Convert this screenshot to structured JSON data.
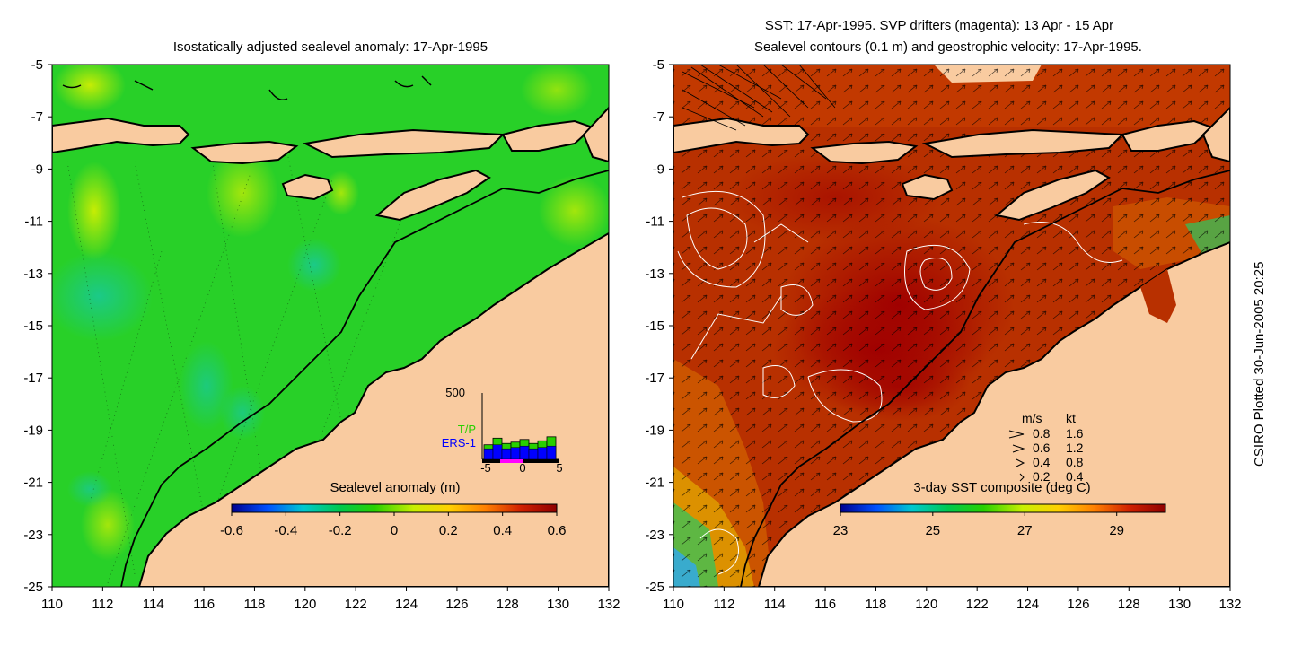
{
  "left_panel": {
    "title": "Isostatically adjusted sealevel anomaly: 17-Apr-1995",
    "colorbar": {
      "title": "Sealevel anomaly (m)",
      "ticks": [
        "-0.6",
        "-0.4",
        "-0.2",
        "0",
        "0.2",
        "0.4",
        "0.6"
      ],
      "stops": [
        "#00008f",
        "#0050ff",
        "#00c8d0",
        "#00c850",
        "#28d000",
        "#c8f000",
        "#ffd000",
        "#ff8000",
        "#d02000",
        "#8f0000"
      ]
    },
    "inset": {
      "ymax_label": "500",
      "legend_tp": "T/P",
      "legend_ers": "ERS-1",
      "x_ticks": [
        "-5",
        "0",
        "5"
      ],
      "tp_values": [
        110,
        160,
        120,
        130,
        150,
        120,
        140,
        170
      ],
      "ers_values": [
        80,
        110,
        80,
        90,
        100,
        80,
        90,
        100
      ],
      "tp_color": "#28d000",
      "ers_color": "#0000ff"
    }
  },
  "right_panel": {
    "title_line1": "SST: 17-Apr-1995. SVP drifters (magenta): 13 Apr - 15 Apr",
    "title_line2": "Sealevel contours (0.1 m) and geostrophic velocity: 17-Apr-1995.",
    "colorbar": {
      "title": "3-day SST composite (deg C)",
      "ticks": [
        "23",
        "25",
        "27",
        "29"
      ],
      "stops": [
        "#00008f",
        "#0050ff",
        "#00c8d0",
        "#00c850",
        "#28d000",
        "#c8f000",
        "#ffd000",
        "#ff8000",
        "#d02000",
        "#8f0000"
      ]
    },
    "velocity_legend": {
      "header_ms": "m/s",
      "header_kt": "kt",
      "rows": [
        {
          "ms": "0.8",
          "kt": "1.6"
        },
        {
          "ms": "0.6",
          "kt": "1.2"
        },
        {
          "ms": "0.4",
          "kt": "0.8"
        },
        {
          "ms": "0.2",
          "kt": "0.4"
        }
      ]
    }
  },
  "axes": {
    "lon_ticks": [
      "110",
      "112",
      "114",
      "116",
      "118",
      "120",
      "122",
      "124",
      "126",
      "128",
      "130",
      "132"
    ],
    "lat_ticks": [
      "-5",
      "-7",
      "-9",
      "-11",
      "-13",
      "-15",
      "-17",
      "-19",
      "-21",
      "-23",
      "-25"
    ],
    "lon_range": [
      110,
      132
    ],
    "lat_range": [
      -25,
      -5
    ]
  },
  "credit": "CSIRO Plotted 30-Jun-2005 20:25",
  "colors": {
    "land": "#f9cba0",
    "sea_left": "#28d028",
    "sst_warm": "#b83000",
    "sst_hot": "#a00000"
  }
}
